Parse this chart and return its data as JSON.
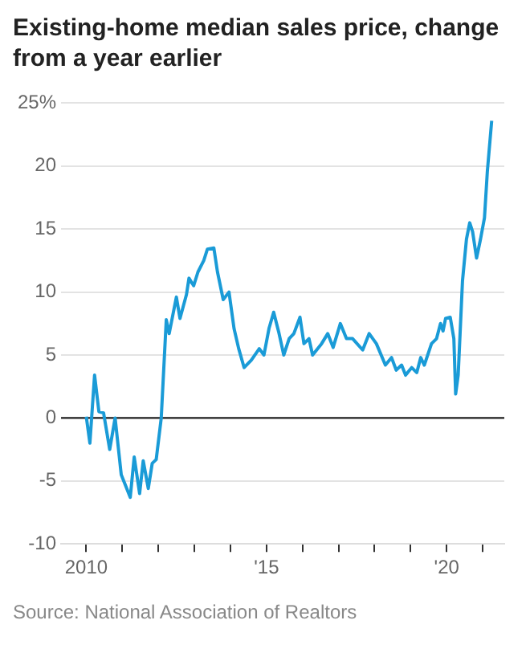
{
  "chart_data": {
    "type": "line",
    "title": "Existing-home median sales price, change from a year earlier",
    "annotations": [
      "Source: National Association of Realtors"
    ],
    "series": [
      {
        "color": "#1a9bd7",
        "x": [
          2010.0,
          2010.1,
          2010.23,
          2010.35,
          2010.48,
          2010.65,
          2010.8,
          2010.97,
          2011.22,
          2011.33,
          2011.48,
          2011.58,
          2011.72,
          2011.83,
          2011.94,
          2012.08,
          2012.22,
          2012.3,
          2012.5,
          2012.6,
          2012.78,
          2012.85,
          2012.98,
          2013.1,
          2013.26,
          2013.36,
          2013.54,
          2013.64,
          2013.8,
          2013.96,
          2014.1,
          2014.23,
          2014.38,
          2014.58,
          2014.8,
          2014.93,
          2015.07,
          2015.2,
          2015.35,
          2015.48,
          2015.63,
          2015.76,
          2015.93,
          2016.04,
          2016.18,
          2016.28,
          2016.53,
          2016.7,
          2016.85,
          2017.05,
          2017.22,
          2017.39,
          2017.67,
          2017.85,
          2018.05,
          2018.3,
          2018.47,
          2018.6,
          2018.75,
          2018.86,
          2019.03,
          2019.17,
          2019.28,
          2019.38,
          2019.58,
          2019.72,
          2019.83,
          2019.9,
          2019.97,
          2020.1,
          2020.2,
          2020.25,
          2020.32,
          2020.44,
          2020.55,
          2020.64,
          2020.72,
          2020.83,
          2020.94,
          2021.05,
          2021.13,
          2021.25
        ],
        "values": [
          0.1,
          -2.0,
          3.4,
          0.5,
          0.4,
          -2.5,
          0,
          -4.5,
          -6.3,
          -3.1,
          -6.0,
          -3.4,
          -5.6,
          -3.6,
          -3.3,
          0,
          7.8,
          6.7,
          9.6,
          7.9,
          9.8,
          11.1,
          10.5,
          11.6,
          12.5,
          13.4,
          13.5,
          11.6,
          9.4,
          10.0,
          7.1,
          5.5,
          4.0,
          4.6,
          5.5,
          5.0,
          7.1,
          8.4,
          6.7,
          5.0,
          6.3,
          6.7,
          8.0,
          5.9,
          6.3,
          5.0,
          5.9,
          6.7,
          5.6,
          7.5,
          6.3,
          6.3,
          5.4,
          6.7,
          5.9,
          4.2,
          4.8,
          3.8,
          4.2,
          3.4,
          4.0,
          3.6,
          4.8,
          4.2,
          5.9,
          6.3,
          7.5,
          6.9,
          7.9,
          8.0,
          6.3,
          1.9,
          3.4,
          10.9,
          14.2,
          15.5,
          14.8,
          12.7,
          14.2,
          15.9,
          19.6,
          23.6
        ]
      }
    ],
    "xlim": [
      2009.3,
      2021.6
    ],
    "xticks": [
      2010,
      {
        "value": 2011,
        "label": null
      },
      {
        "value": 2012,
        "label": null
      },
      {
        "value": 2013,
        "label": null
      },
      {
        "value": 2014,
        "label": null
      },
      {
        "value": 2015,
        "label": "'15"
      },
      {
        "value": 2016,
        "label": null
      },
      {
        "value": 2017,
        "label": null
      },
      {
        "value": 2018,
        "label": null
      },
      {
        "value": 2019,
        "label": null
      },
      {
        "value": 2020,
        "label": "'20"
      },
      {
        "value": 2021,
        "label": null
      }
    ],
    "ylim": [
      -10,
      25
    ],
    "yticks": [
      -10,
      -5,
      0,
      5,
      10,
      15,
      20,
      {
        "value": 25,
        "label": "25%"
      }
    ],
    "ref_lines": [
      {
        "axis": "y",
        "value": 0,
        "color": "#222222"
      }
    ],
    "grid": "y",
    "legend": false,
    "marker": "none",
    "line_style": "solid"
  }
}
